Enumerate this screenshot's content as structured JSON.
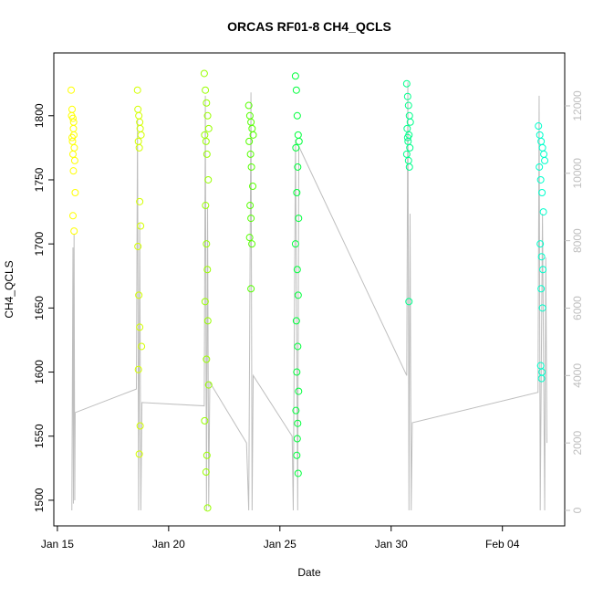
{
  "chart_data": {
    "type": "scatter",
    "title": "ORCAS RF01-8 CH4_QCLS",
    "xlabel": "Date",
    "ylabel": "CH4_QCLS",
    "xlim": [
      14.84,
      37.8
    ],
    "xticks": [
      {
        "value": 15,
        "label": "Jan 15"
      },
      {
        "value": 20,
        "label": "Jan 20"
      },
      {
        "value": 25,
        "label": "Jan 25"
      },
      {
        "value": 30,
        "label": "Jan 30"
      },
      {
        "value": 35,
        "label": "Feb 04"
      }
    ],
    "ylim": [
      1480,
      1849
    ],
    "yticks": [
      1500,
      1550,
      1600,
      1650,
      1700,
      1750,
      1800
    ],
    "y2lim": [
      -460,
      13570
    ],
    "y2ticks": [
      0,
      2000,
      4000,
      6000,
      8000,
      10000,
      12000
    ],
    "y2color": "#bebebe",
    "series": [
      {
        "color": "#ffff00",
        "x": [
          15.62,
          15.66,
          15.7,
          15.72,
          15.74,
          15.68,
          15.76,
          15.7,
          15.78,
          15.64,
          15.72,
          15.8,
          15.7,
          15.75,
          15.66,
          15.73
        ],
        "values": [
          1820,
          1805,
          1798,
          1790,
          1785,
          1780,
          1775,
          1770,
          1765,
          1800,
          1757,
          1740,
          1722,
          1710,
          1783,
          1795
        ]
      },
      {
        "color": "#d4ff00",
        "x": [
          18.6,
          18.62,
          18.66,
          18.7,
          18.72,
          18.76,
          18.64,
          18.68,
          18.7,
          18.74,
          18.62,
          18.66,
          18.7,
          18.78,
          18.64,
          18.72,
          18.68
        ],
        "values": [
          1820,
          1805,
          1800,
          1795,
          1790,
          1785,
          1780,
          1775,
          1733,
          1714,
          1698,
          1660,
          1635,
          1620,
          1602,
          1558,
          1536
        ]
      },
      {
        "color": "#99ff00",
        "x": [
          21.6,
          21.65,
          21.7,
          21.75,
          21.8,
          21.62,
          21.68,
          21.72,
          21.78,
          21.66,
          21.7,
          21.74,
          21.64,
          21.76,
          21.7,
          21.8,
          21.62,
          21.72,
          21.68,
          21.75
        ],
        "values": [
          1833,
          1820,
          1810,
          1800,
          1790,
          1785,
          1780,
          1770,
          1750,
          1730,
          1700,
          1680,
          1655,
          1640,
          1610,
          1590,
          1562,
          1535,
          1522,
          1494
        ]
      },
      {
        "color": "#55ff00",
        "x": [
          23.6,
          23.65,
          23.7,
          23.75,
          23.8,
          23.62,
          23.68,
          23.72,
          23.78,
          23.66,
          23.7,
          23.64,
          23.74,
          23.7
        ],
        "values": [
          1808,
          1800,
          1795,
          1790,
          1785,
          1780,
          1770,
          1760,
          1745,
          1730,
          1720,
          1705,
          1700,
          1665
        ]
      },
      {
        "color": "#00ff3c",
        "x": [
          25.7,
          25.74,
          25.78,
          25.82,
          25.86,
          25.72,
          25.8,
          25.76,
          25.84,
          25.7,
          25.78,
          25.82,
          25.74,
          25.8,
          25.76,
          25.84,
          25.72,
          25.8,
          25.78,
          25.76,
          25.82
        ],
        "values": [
          1831,
          1820,
          1800,
          1785,
          1780,
          1775,
          1760,
          1740,
          1720,
          1700,
          1680,
          1660,
          1640,
          1620,
          1600,
          1585,
          1570,
          1560,
          1548,
          1535,
          1521
        ]
      },
      {
        "color": "#00ff8c",
        "x": [
          30.7,
          30.74,
          30.78,
          30.82,
          30.86,
          30.72,
          30.8,
          30.76,
          30.84,
          30.7,
          30.78,
          30.82,
          30.74,
          30.8
        ],
        "values": [
          1825,
          1815,
          1808,
          1800,
          1795,
          1790,
          1785,
          1780,
          1775,
          1770,
          1765,
          1760,
          1783,
          1655
        ]
      },
      {
        "color": "#00ffcc",
        "x": [
          36.62,
          36.68,
          36.74,
          36.8,
          36.86,
          36.9,
          36.66,
          36.72,
          36.78,
          36.84,
          36.7,
          36.76,
          36.82,
          36.74,
          36.8,
          36.72,
          36.78,
          36.76
        ],
        "values": [
          1792,
          1785,
          1780,
          1775,
          1770,
          1765,
          1760,
          1750,
          1740,
          1725,
          1700,
          1690,
          1680,
          1665,
          1650,
          1605,
          1600,
          1595
        ]
      },
      {
        "type": "line",
        "axis": "y2",
        "color": "#bebebe",
        "x": [
          15.65,
          15.7,
          15.72,
          15.75,
          15.78,
          15.8,
          18.55,
          18.6,
          18.65,
          18.7,
          18.75,
          18.8,
          21.6,
          21.65,
          21.7,
          21.75,
          21.8,
          21.85,
          23.5,
          23.6,
          23.7,
          23.75,
          23.8,
          25.55,
          25.6,
          25.7,
          25.8,
          25.85,
          30.7,
          30.75,
          30.8,
          30.85,
          30.9,
          30.95,
          36.6,
          36.65,
          36.7,
          36.8,
          36.9,
          36.95,
          37.0
        ],
        "values": [
          0,
          7800,
          200,
          8200,
          300,
          2900,
          3600,
          11600,
          0,
          8500,
          0,
          3200,
          3100,
          12300,
          0,
          9000,
          100,
          3800,
          2000,
          0,
          12400,
          0,
          4000,
          2200,
          0,
          11000,
          0,
          10800,
          4000,
          12700,
          0,
          8800,
          0,
          2600,
          3500,
          12300,
          0,
          8800,
          0,
          7500,
          2000
        ]
      }
    ]
  }
}
